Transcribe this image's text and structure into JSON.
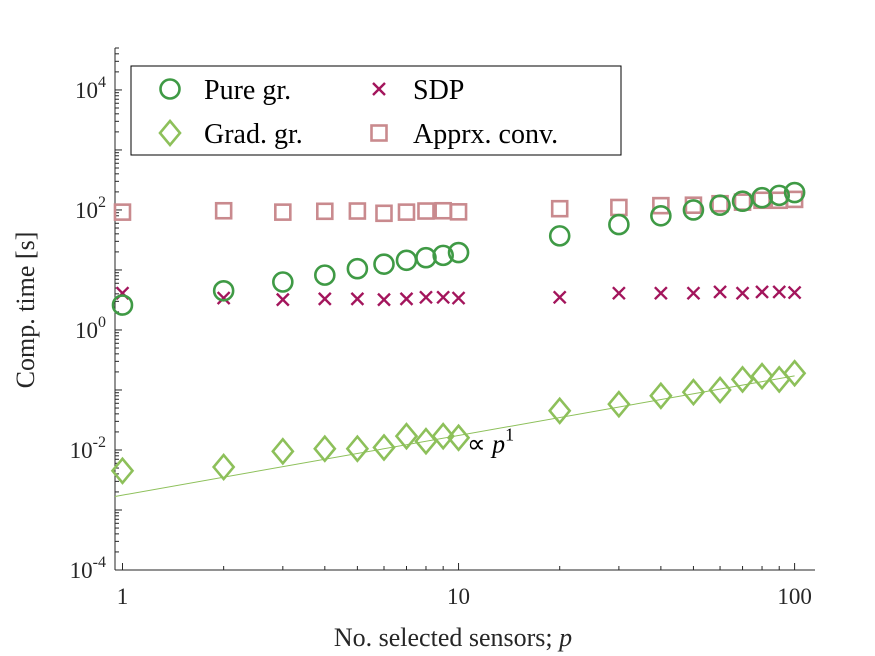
{
  "chart_data": {
    "type": "scatter",
    "xlabel": "No. selected sensors; ",
    "xlabel_var": "p",
    "ylabel": "Comp. time [s]",
    "x_scale": "log",
    "y_scale": "log",
    "xlim": [
      0.95,
      115
    ],
    "ylim": [
      0.0001,
      50000
    ],
    "grid": false,
    "legend_position": "top-left",
    "x_ticks": [
      {
        "value": 1,
        "label": "1"
      },
      {
        "value": 10,
        "label": "10"
      },
      {
        "value": 100,
        "label": "100"
      }
    ],
    "y_ticks": [
      {
        "value": 0.0001,
        "base": "10",
        "exp": "-4"
      },
      {
        "value": 0.01,
        "base": "10",
        "exp": "-2"
      },
      {
        "value": 1,
        "base": "10",
        "exp": "0"
      },
      {
        "value": 100,
        "base": "10",
        "exp": "2"
      },
      {
        "value": 10000,
        "base": "10",
        "exp": "4"
      }
    ],
    "series": [
      {
        "name": "Pure gr.",
        "marker": "circle",
        "color": "#3f9a45",
        "x": [
          1,
          2,
          3,
          4,
          5,
          6,
          7,
          8,
          9,
          10,
          20,
          30,
          40,
          50,
          60,
          70,
          80,
          90,
          100
        ],
        "y": [
          2.6,
          4.5,
          6.3,
          8.2,
          10.5,
          12.5,
          14.5,
          16,
          17.5,
          19.5,
          37,
          57,
          80,
          100,
          120,
          140,
          160,
          175,
          195
        ]
      },
      {
        "name": "Grad. gr.",
        "marker": "diamond",
        "color": "#8dc05a",
        "x": [
          1,
          2,
          3,
          4,
          5,
          6,
          7,
          8,
          9,
          10,
          20,
          30,
          40,
          50,
          60,
          70,
          80,
          90,
          100
        ],
        "y": [
          0.0045,
          0.0052,
          0.0095,
          0.0105,
          0.0105,
          0.011,
          0.017,
          0.014,
          0.017,
          0.016,
          0.045,
          0.058,
          0.08,
          0.092,
          0.1,
          0.15,
          0.17,
          0.15,
          0.19
        ]
      },
      {
        "name": "SDP",
        "marker": "cross",
        "color": "#a3155c",
        "x": [
          1,
          2,
          3,
          4,
          5,
          6,
          7,
          8,
          9,
          10,
          20,
          30,
          40,
          50,
          60,
          70,
          80,
          90,
          100
        ],
        "y": [
          4.1,
          3.4,
          3.2,
          3.3,
          3.3,
          3.2,
          3.3,
          3.5,
          3.5,
          3.4,
          3.5,
          4.1,
          4.1,
          4.1,
          4.3,
          4.1,
          4.3,
          4.3,
          4.2
        ]
      },
      {
        "name": "Apprx. conv.",
        "marker": "square",
        "color": "#c98a8e",
        "x": [
          1,
          2,
          3,
          4,
          5,
          6,
          7,
          8,
          9,
          10,
          20,
          30,
          40,
          50,
          60,
          70,
          80,
          90,
          100
        ],
        "y": [
          92,
          97,
          92,
          95,
          96,
          88,
          92,
          96,
          97,
          93,
          105,
          110,
          118,
          120,
          127,
          135,
          145,
          145,
          150
        ]
      }
    ],
    "fit_line": {
      "color": "#8dc05a",
      "x": [
        0.95,
        100
      ],
      "y": [
        0.00168,
        0.172
      ]
    },
    "annotation": {
      "prefix": "∝ ",
      "var": "p",
      "exp": "1",
      "x": 10.6,
      "y": 0.009
    }
  }
}
